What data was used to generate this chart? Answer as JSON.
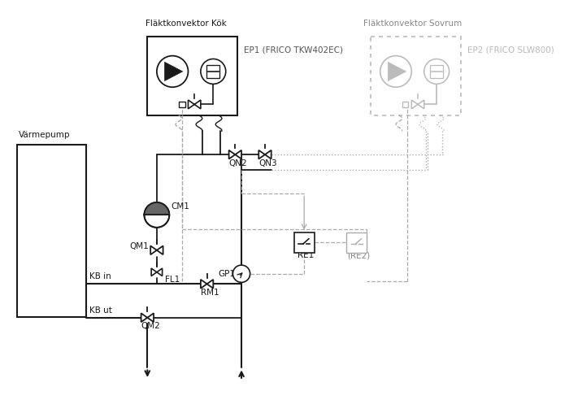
{
  "bg_color": "#ffffff",
  "lc": "#1a1a1a",
  "gc": "#aaaaaa",
  "title_kok": "Fläktkonvektor Kök",
  "title_sovrum": "Fläktkonvektor Sovrum",
  "ep1": "EP1 (FRICO TKW402EC)",
  "ep2": "EP2 (FRICO SLW800)",
  "varmepump": "Värmepump",
  "CM1": "CM1",
  "QM1": "QM1",
  "QM2": "QM2",
  "FL1": "FL1",
  "QN2": "QN2",
  "QN3": "QN3",
  "RM1": "RM1",
  "RE1": "RE1",
  "RE2": "(RE2)",
  "GP1": "GP1",
  "KBin": "KB in",
  "KBut": "KB ut"
}
